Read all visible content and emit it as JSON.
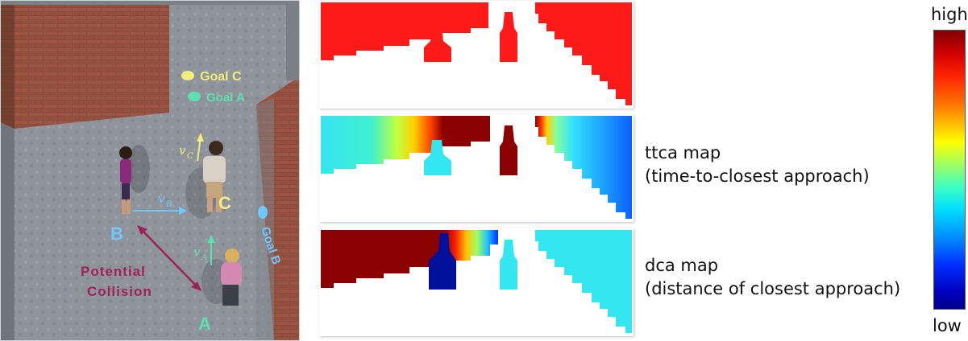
{
  "scene": {
    "goal_c": "Goal C",
    "goal_a": "Goal A",
    "goal_b": "Goal B",
    "agent_a": "A",
    "agent_b": "B",
    "agent_c": "C",
    "vec_a": "v",
    "vec_a_sub": "A",
    "vec_b": "v",
    "vec_b_sub": "B",
    "vec_c": "v",
    "vec_c_sub": "C",
    "collision_line1": "Potential",
    "collision_line2": "Collision"
  },
  "maps": {
    "ttca_title": "ttca map",
    "ttca_sub": "(time-to-closest approach)",
    "dca_title": "dca map",
    "dca_sub": "(distance of closest approach)"
  },
  "colorbar": {
    "high": "high",
    "low": "low"
  },
  "colors": {
    "red": "#ff1a1a",
    "dark_red": "#8b0000",
    "cyan": "#33e6f0",
    "navy": "#00109a",
    "goal_c": "#f4ef7a",
    "goal_a": "#5fe0b0",
    "goal_b": "#70c8ff",
    "collision": "#a0205a"
  }
}
